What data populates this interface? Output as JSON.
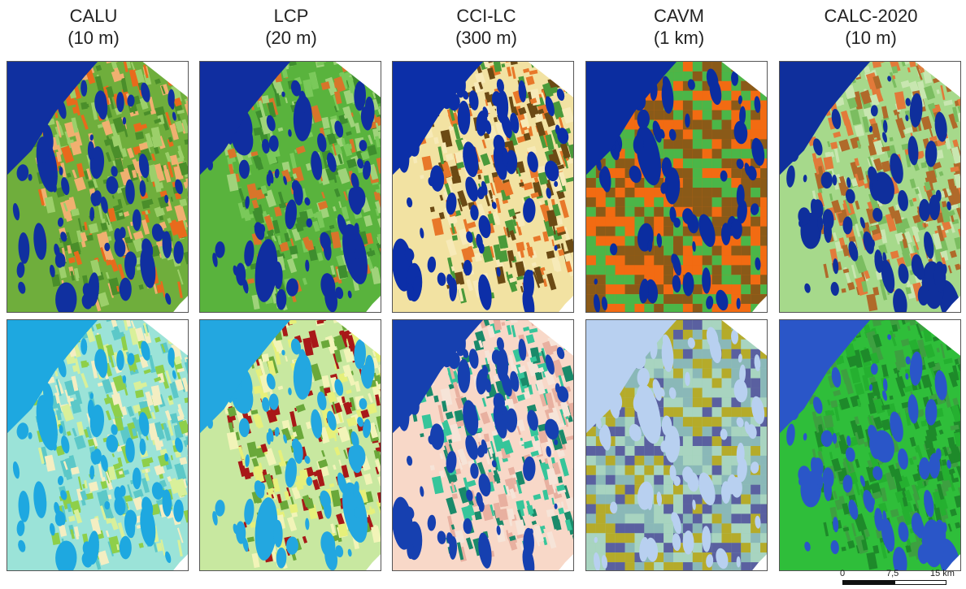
{
  "columns": [
    {
      "name": "CALU",
      "resolution": "(10 m)"
    },
    {
      "name": "LCP",
      "resolution": "(20 m)"
    },
    {
      "name": "CCI-LC",
      "resolution": "(300 m)"
    },
    {
      "name": "CAVM",
      "resolution": "(1 km)"
    },
    {
      "name": "CALC-2020",
      "resolution": "(10 m)"
    }
  ],
  "rows": [
    "top",
    "bottom"
  ],
  "scalebar": {
    "ticks": [
      "0",
      "7,5",
      "15 km"
    ]
  },
  "palettes": {
    "calu_top": {
      "bg": "#6fae3c",
      "land": [
        "#e86a1c",
        "#f0b070",
        "#9ccf6a",
        "#4a8e2a"
      ],
      "water": "#1030a0"
    },
    "lcp_top": {
      "bg": "#59b33d",
      "land": [
        "#7ac95a",
        "#3e8e2e",
        "#d8752a",
        "#9fd37a"
      ],
      "water": "#102ea0"
    },
    "cci_top": {
      "bg": "#f2e2a2",
      "land": [
        "#e8782a",
        "#6b4a14",
        "#f7eab8",
        "#4a9a3a"
      ],
      "water": "#0c2fa8"
    },
    "cavm_top": {
      "bg": "#f26b12",
      "land": [
        "#4bb648",
        "#f26b12",
        "#8a5a18"
      ],
      "water": "#0b2da0"
    },
    "calc_top": {
      "bg": "#a6d98b",
      "land": [
        "#e27a3a",
        "#c8e6b0",
        "#7bbd60",
        "#b06a2a"
      ],
      "water": "#0f2f9c"
    },
    "calu_bottom": {
      "bg": "#9be3d8",
      "land": [
        "#d9f09a",
        "#5cc8c8",
        "#f4eec2",
        "#8ecf4a"
      ],
      "water": "#1ea8e0"
    },
    "lcp_bottom": {
      "bg": "#c8e8a0",
      "land": [
        "#a81818",
        "#e6f07a",
        "#6aa83a",
        "#f2f4b8"
      ],
      "water": "#23a7e0"
    },
    "cci_bottom": {
      "bg": "#f8d8c8",
      "land": [
        "#36c59a",
        "#f6e4d8",
        "#1a8a6a",
        "#e8b0a0"
      ],
      "water": "#1640b0"
    },
    "cavm_bottom": {
      "bg": "#9fcfb0",
      "land": [
        "#b5ab2a",
        "#5a60a0",
        "#8ab8b8",
        "#a8d4c0"
      ],
      "water": "#b8d0f0"
    },
    "calc_bottom": {
      "bg": "#2fbe3a",
      "land": [
        "#3da040",
        "#25b030",
        "#1e8a2a"
      ],
      "water": "#2a56c8"
    }
  }
}
